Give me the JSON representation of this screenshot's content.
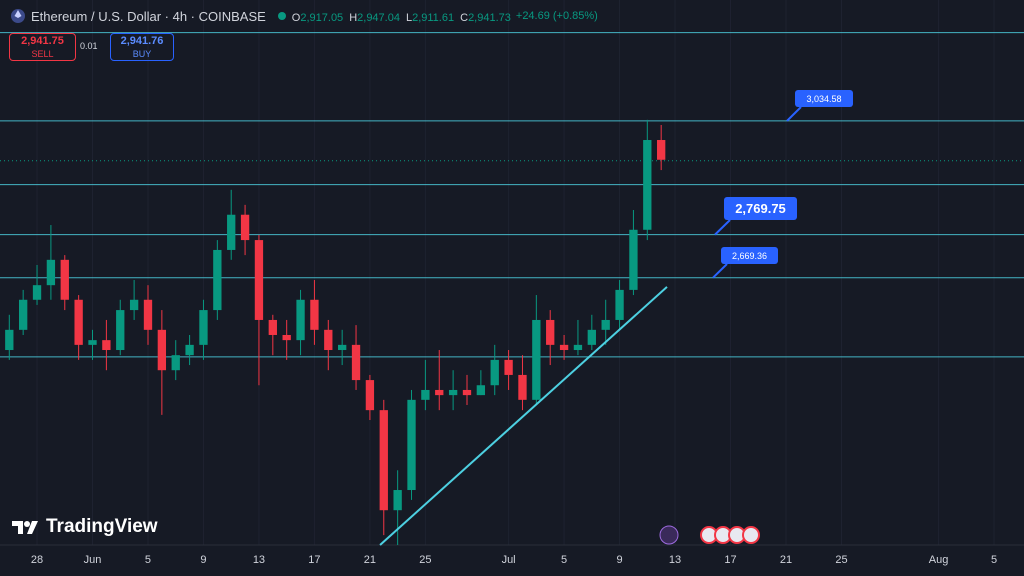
{
  "header": {
    "symbol": "Ethereum / U.S. Dollar · 4h · COINBASE",
    "ohlc": [
      [
        "O",
        "2,917.05"
      ],
      [
        "H",
        "2,947.04"
      ],
      [
        "L",
        "2,911.61"
      ],
      [
        "C",
        "2,941.73"
      ]
    ],
    "change": "+24.69 (+0.85%)",
    "sell_price": "2,941.75",
    "sell_label": "SELL",
    "spread": "0.01",
    "buy_price": "2,941.76",
    "buy_label": "BUY",
    "logo": "TradingView"
  },
  "chart_data": {
    "type": "candlestick",
    "x": [
      -2,
      -1,
      0,
      1,
      2,
      3,
      4,
      5,
      6,
      7,
      8,
      9,
      10,
      11,
      12,
      13,
      14,
      15,
      16,
      17,
      18,
      19,
      20,
      21,
      22,
      23,
      24,
      25,
      26,
      27,
      28,
      29,
      30,
      31,
      32,
      33,
      34,
      35,
      36,
      37,
      38,
      39,
      40,
      41,
      42,
      43,
      44,
      45
    ],
    "open": [
      2501,
      2548,
      2618,
      2652,
      2711,
      2618,
      2513,
      2524,
      2501,
      2594,
      2618,
      2548,
      2454,
      2489,
      2513,
      2594,
      2734,
      2816,
      2757,
      2571,
      2536,
      2524,
      2618,
      2548,
      2501,
      2513,
      2431,
      2361,
      2128,
      2175,
      2385,
      2408,
      2396,
      2408,
      2396,
      2419,
      2478,
      2443,
      2385,
      2571,
      2513,
      2501,
      2513,
      2548,
      2571,
      2641,
      2781,
      2990
    ],
    "high": [
      2583,
      2641,
      2699,
      2792,
      2722,
      2629,
      2548,
      2571,
      2618,
      2664,
      2652,
      2594,
      2524,
      2536,
      2618,
      2757,
      2874,
      2839,
      2769,
      2583,
      2571,
      2641,
      2664,
      2571,
      2548,
      2559,
      2443,
      2385,
      2221,
      2408,
      2478,
      2501,
      2454,
      2443,
      2454,
      2513,
      2501,
      2489,
      2629,
      2594,
      2536,
      2571,
      2583,
      2618,
      2664,
      2827,
      3037,
      3025
    ],
    "low": [
      2478,
      2536,
      2606,
      2618,
      2594,
      2478,
      2478,
      2454,
      2489,
      2571,
      2513,
      2350,
      2431,
      2466,
      2478,
      2571,
      2711,
      2722,
      2419,
      2489,
      2478,
      2489,
      2513,
      2454,
      2466,
      2408,
      2338,
      2070,
      2047,
      2152,
      2361,
      2361,
      2361,
      2373,
      2396,
      2396,
      2408,
      2361,
      2373,
      2466,
      2478,
      2489,
      2501,
      2513,
      2548,
      2629,
      2757,
      2920
    ],
    "close": [
      2548,
      2618,
      2652,
      2711,
      2618,
      2513,
      2524,
      2501,
      2594,
      2618,
      2548,
      2454,
      2489,
      2513,
      2594,
      2734,
      2816,
      2757,
      2571,
      2536,
      2524,
      2618,
      2548,
      2501,
      2513,
      2431,
      2361,
      2128,
      2175,
      2385,
      2408,
      2396,
      2408,
      2396,
      2419,
      2478,
      2443,
      2385,
      2571,
      2513,
      2501,
      2513,
      2548,
      2571,
      2641,
      2781,
      2990,
      2944
    ],
    "up_color": "#089981",
    "down_color": "#f23645",
    "line_color": "#4dd0e1",
    "xlim": [
      -2.67,
      71.16
    ],
    "ylim": [
      2047,
      3316
    ],
    "xticks": [
      {
        "value": 0,
        "label": "28"
      },
      {
        "value": 4,
        "label": "Jun"
      },
      {
        "value": 8,
        "label": "5"
      },
      {
        "value": 12,
        "label": "9"
      },
      {
        "value": 16,
        "label": "13"
      },
      {
        "value": 20,
        "label": "17"
      },
      {
        "value": 24,
        "label": "21"
      },
      {
        "value": 28,
        "label": "25"
      },
      {
        "value": 34,
        "label": "Jul"
      },
      {
        "value": 38,
        "label": "5"
      },
      {
        "value": 42,
        "label": "9"
      },
      {
        "value": 46,
        "label": "13"
      },
      {
        "value": 50,
        "label": "17"
      },
      {
        "value": 54,
        "label": "21"
      },
      {
        "value": 58,
        "label": "25"
      },
      {
        "value": 65,
        "label": "Aug"
      },
      {
        "value": 69,
        "label": "5"
      }
    ],
    "hlines": [
      3240,
      {
        "value": 3034.58,
        "label": "3,034.58"
      },
      2886,
      {
        "value": 2769.75,
        "label": "2,769.75"
      },
      {
        "value": 2669.36,
        "label": "2,669.36"
      },
      2485
    ],
    "last_price": 2941.73,
    "trendline": {
      "x": [
        24.73,
        45.42
      ],
      "y": [
        2047,
        2648
      ]
    }
  }
}
